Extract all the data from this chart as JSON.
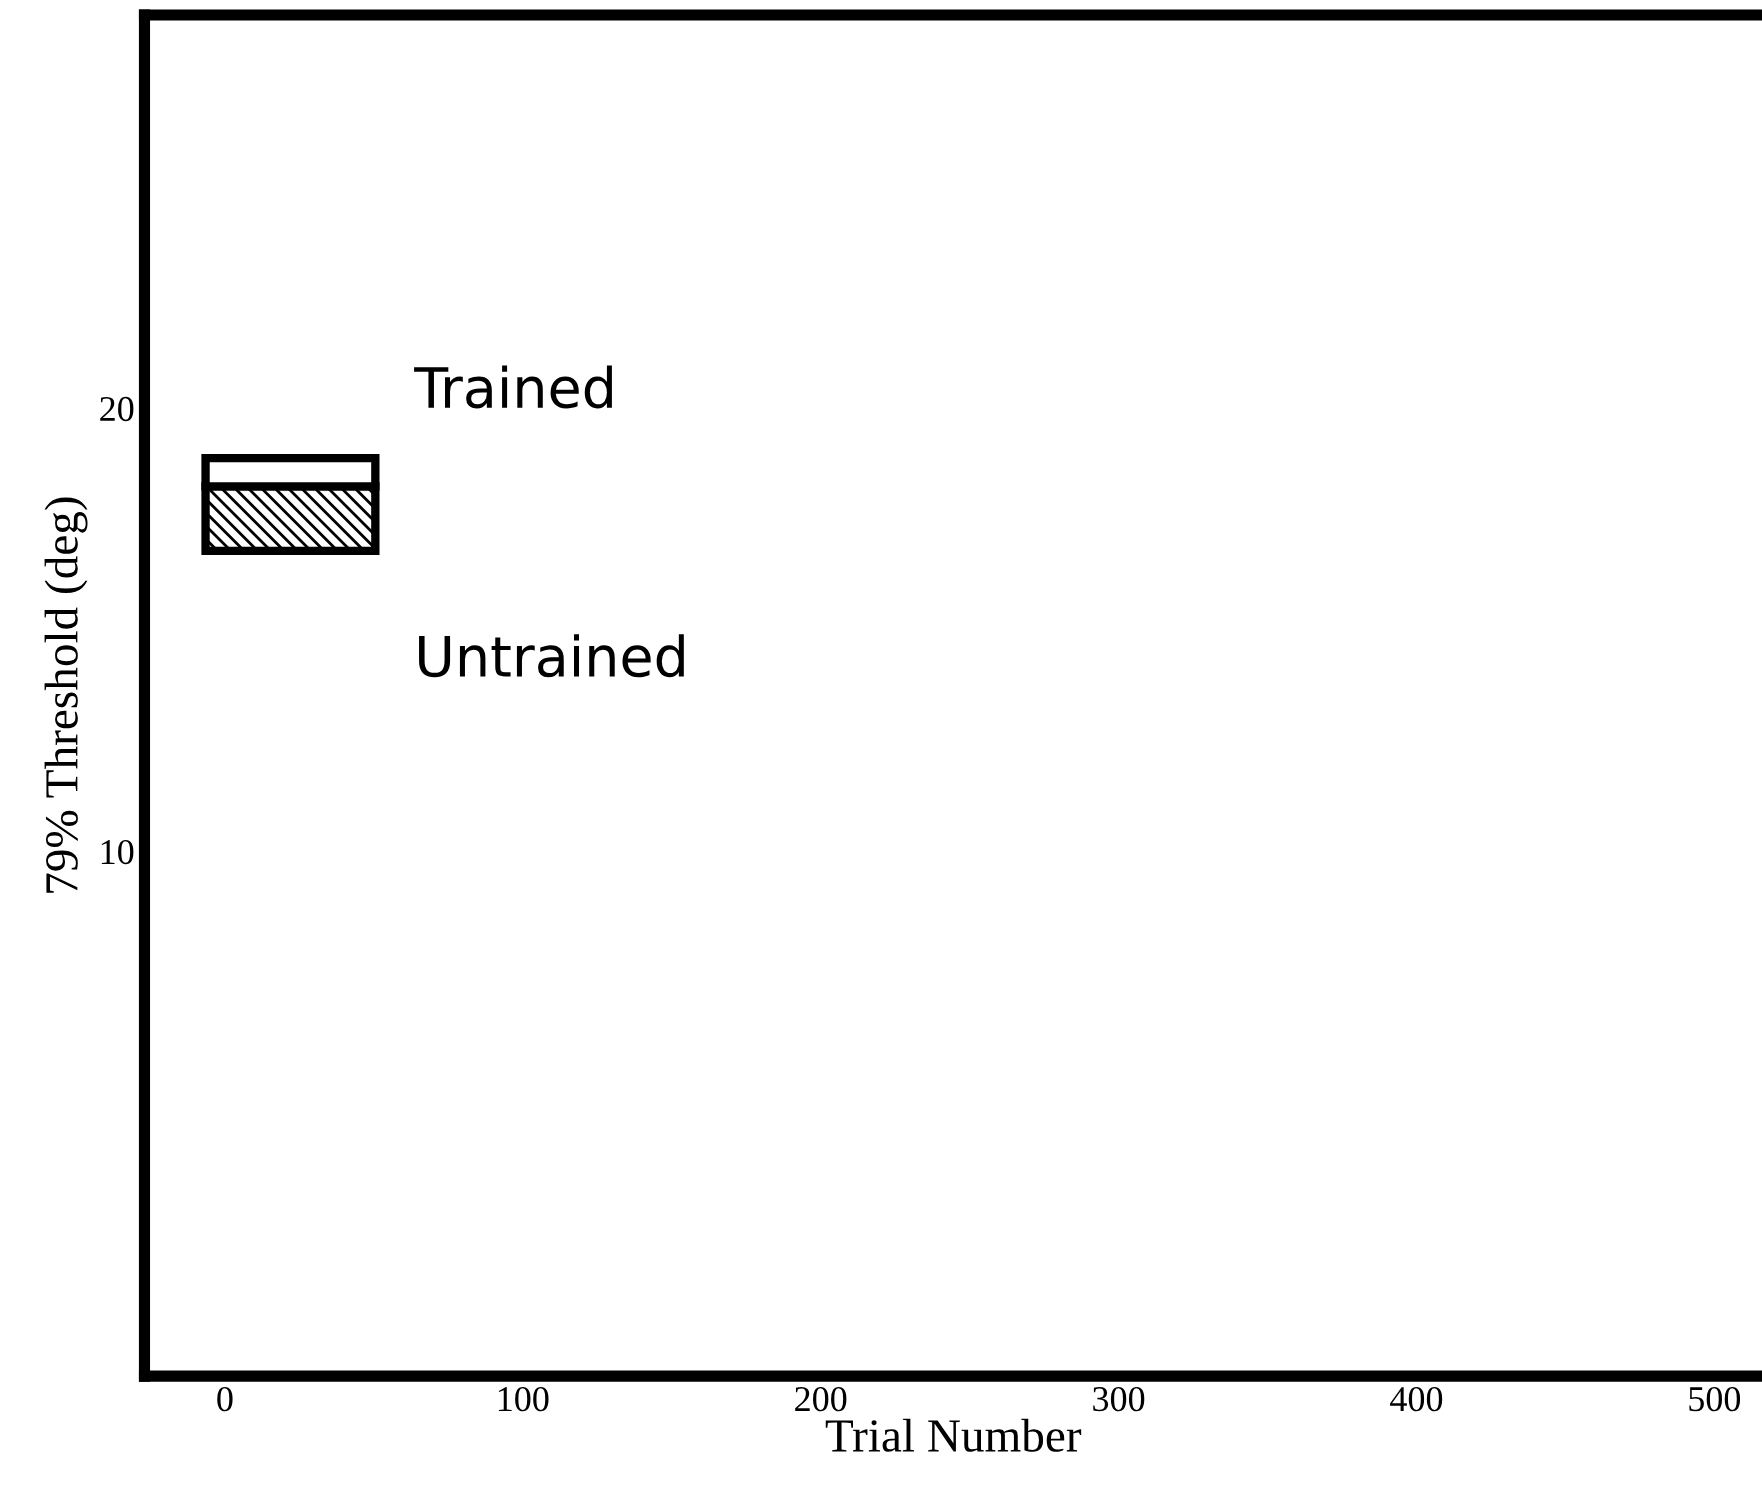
{
  "chart_data": {
    "type": "bar",
    "xlabel": "Trial Number",
    "ylabel": "79% Threshold (deg)",
    "x": [
      22
    ],
    "series": [
      {
        "name": "Untrained",
        "color": "#000000",
        "base": [
          16.0
        ],
        "values": [
          1.7
        ]
      },
      {
        "name": "Trained",
        "color": "#ffffff",
        "base": [
          17.7
        ],
        "values": [
          0.8
        ]
      }
    ],
    "log": "y",
    "xlim": [
      -27,
      516
    ],
    "xticks": [
      0,
      100,
      200,
      300,
      400,
      500
    ],
    "ylim": [
      4.4,
      37
    ],
    "yticks": [
      10,
      20
    ],
    "grid": false
  }
}
